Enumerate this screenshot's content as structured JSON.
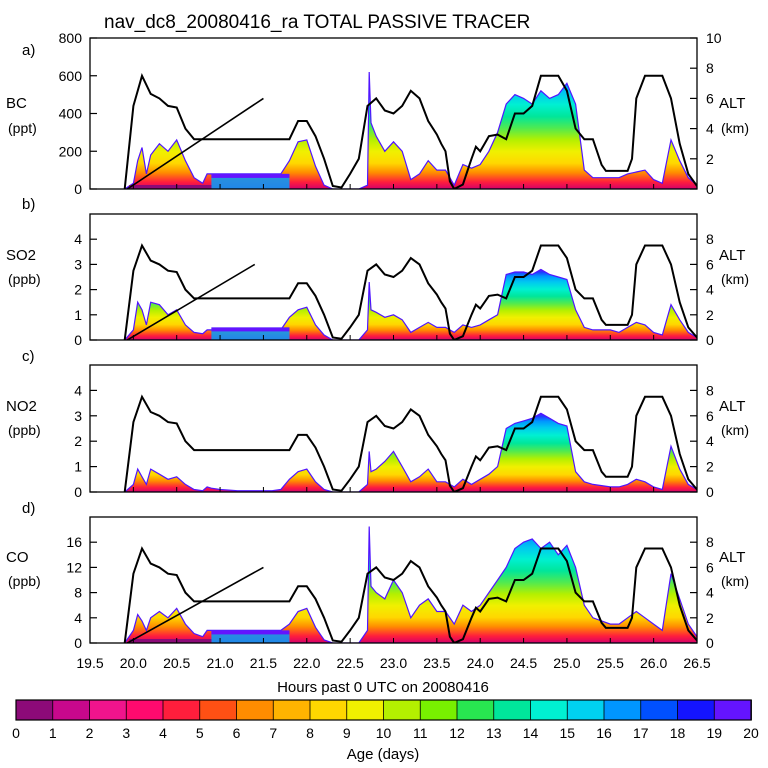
{
  "chart_data": {
    "type": "area",
    "title": "nav_dc8_20080416_ra TOTAL PASSIVE TRACER",
    "xlabel": "Hours past 0 UTC on 20080416",
    "xlim": [
      19.5,
      26.5
    ],
    "x_ticks": [
      "19.5",
      "20.0",
      "20.5",
      "21.0",
      "21.5",
      "22.0",
      "22.5",
      "23.0",
      "23.5",
      "24.0",
      "24.5",
      "25.0",
      "25.5",
      "26.0",
      "26.5"
    ],
    "colorbar": {
      "label": "Age (days)",
      "ticks": [
        "0",
        "1",
        "2",
        "3",
        "4",
        "5",
        "6",
        "7",
        "8",
        "9",
        "10",
        "11",
        "12",
        "13",
        "14",
        "15",
        "16",
        "17",
        "18",
        "19",
        "20"
      ],
      "colors": [
        "#8c0a78",
        "#c8088c",
        "#f0148c",
        "#ff0a6e",
        "#ff1e3c",
        "#ff5014",
        "#ff8c00",
        "#ffb400",
        "#ffd700",
        "#f0f000",
        "#b4f000",
        "#78f000",
        "#28e650",
        "#00e69b",
        "#00f0d2",
        "#00d2f0",
        "#0096ff",
        "#0050ff",
        "#1414ff",
        "#6414ff"
      ]
    },
    "altitude": {
      "label": "ALT",
      "unit": "(km)",
      "ylim": [
        0,
        10
      ],
      "x": [
        19.9,
        20.0,
        20.1,
        20.2,
        20.3,
        20.4,
        20.5,
        20.6,
        20.7,
        20.8,
        20.9,
        21.0,
        21.2,
        21.4,
        21.6,
        21.8,
        21.9,
        22.0,
        22.1,
        22.2,
        22.3,
        22.4,
        22.5,
        22.6,
        22.7,
        22.8,
        22.9,
        23.0,
        23.1,
        23.2,
        23.3,
        23.4,
        23.5,
        23.55,
        23.6,
        23.65,
        23.7,
        23.8,
        23.9,
        23.95,
        24.0,
        24.05,
        24.1,
        24.2,
        24.3,
        24.4,
        24.5,
        24.6,
        24.7,
        24.8,
        24.9,
        25.0,
        25.1,
        25.2,
        25.3,
        25.4,
        25.45,
        25.5,
        25.6,
        25.7,
        25.75,
        25.8,
        25.9,
        26.0,
        26.1,
        26.2,
        26.3,
        26.4,
        26.5
      ],
      "y": [
        0,
        5.5,
        7.5,
        6.3,
        6.0,
        5.5,
        5.4,
        4.0,
        3.3,
        3.3,
        3.3,
        3.3,
        3.3,
        3.3,
        3.3,
        3.3,
        4.5,
        4.5,
        3.5,
        2.0,
        0.2,
        0.1,
        1.0,
        2.0,
        5.5,
        6.0,
        5.2,
        5.0,
        5.5,
        6.5,
        6.0,
        4.5,
        3.6,
        3.0,
        2.5,
        0.5,
        0,
        0.3,
        2.0,
        2.8,
        2.5,
        3.0,
        3.5,
        3.6,
        3.3,
        5.0,
        5.0,
        5.5,
        7.5,
        7.5,
        7.5,
        6.5,
        4.0,
        3.3,
        3.3,
        1.6,
        1.2,
        1.2,
        1.2,
        1.2,
        2.0,
        6.0,
        7.5,
        7.5,
        7.5,
        6.0,
        3.0,
        1.0,
        0.2
      ]
    },
    "panels": [
      {
        "letter": "a)",
        "species": "BC",
        "unit": "(ppt)",
        "ylim": [
          0,
          800
        ],
        "yticks": [
          "0",
          "200",
          "400",
          "600",
          "800"
        ],
        "alt_ticks": [
          "0",
          "2",
          "4",
          "6",
          "8",
          "10"
        ],
        "alt_max": 10,
        "ramp": [
          21.0,
          21.5
        ],
        "x": [
          19.9,
          20.0,
          20.05,
          20.1,
          20.15,
          20.2,
          20.3,
          20.4,
          20.5,
          20.6,
          20.7,
          20.8,
          20.85,
          20.9,
          21.0,
          21.2,
          21.4,
          21.6,
          21.7,
          21.8,
          21.9,
          22.0,
          22.1,
          22.2,
          22.3,
          22.6,
          22.7,
          22.72,
          22.74,
          22.8,
          22.9,
          23.0,
          23.1,
          23.2,
          23.3,
          23.4,
          23.5,
          23.6,
          23.7,
          23.8,
          23.9,
          24.0,
          24.1,
          24.2,
          24.3,
          24.4,
          24.5,
          24.6,
          24.7,
          24.8,
          24.9,
          25.0,
          25.1,
          25.2,
          25.3,
          25.5,
          25.6,
          25.7,
          25.8,
          25.9,
          26.0,
          26.1,
          26.2,
          26.3,
          26.4,
          26.5
        ],
        "values": [
          0,
          30,
          150,
          220,
          80,
          180,
          240,
          200,
          260,
          150,
          60,
          30,
          80,
          80,
          80,
          80,
          80,
          80,
          80,
          150,
          250,
          260,
          120,
          20,
          0,
          0,
          20,
          620,
          350,
          280,
          200,
          250,
          200,
          50,
          80,
          150,
          100,
          100,
          20,
          130,
          110,
          130,
          200,
          300,
          450,
          500,
          480,
          450,
          520,
          480,
          500,
          560,
          450,
          100,
          60,
          60,
          60,
          80,
          90,
          100,
          50,
          30,
          260,
          150,
          60,
          20
        ]
      },
      {
        "letter": "b)",
        "species": "SO2",
        "unit": "(ppb)",
        "ylim": [
          0,
          5
        ],
        "yticks": [
          "0",
          "1",
          "2",
          "3",
          "4"
        ],
        "alt_ticks": [
          "0",
          "2",
          "4",
          "6",
          "8"
        ],
        "alt_max": 10,
        "ramp": [
          20.8,
          21.4
        ],
        "x": [
          19.9,
          20.0,
          20.05,
          20.1,
          20.15,
          20.2,
          20.3,
          20.4,
          20.5,
          20.6,
          20.7,
          20.8,
          20.85,
          20.9,
          21.0,
          21.2,
          21.4,
          21.6,
          21.7,
          21.8,
          21.9,
          22.0,
          22.1,
          22.2,
          22.3,
          22.6,
          22.7,
          22.72,
          22.74,
          22.8,
          22.9,
          23.0,
          23.1,
          23.2,
          23.3,
          23.4,
          23.5,
          23.6,
          23.7,
          23.8,
          23.9,
          24.0,
          24.1,
          24.2,
          24.3,
          24.4,
          24.5,
          24.6,
          24.7,
          24.8,
          24.9,
          25.0,
          25.1,
          25.2,
          25.3,
          25.5,
          25.6,
          25.7,
          25.8,
          25.9,
          26.0,
          26.1,
          26.2,
          26.3,
          26.4,
          26.5
        ],
        "values": [
          0,
          0.4,
          1.5,
          1.2,
          0.6,
          1.5,
          1.4,
          1.0,
          1.2,
          0.6,
          0.3,
          0.25,
          0.4,
          0.4,
          0.4,
          0.4,
          0.4,
          0.4,
          0.4,
          0.9,
          1.2,
          1.3,
          0.6,
          0.2,
          0,
          0,
          0.4,
          2.3,
          1.2,
          1.1,
          0.9,
          1.0,
          0.8,
          0.3,
          0.5,
          0.7,
          0.5,
          0.5,
          0.3,
          0.6,
          0.5,
          0.6,
          0.8,
          1.0,
          2.6,
          2.7,
          2.7,
          2.6,
          2.8,
          2.6,
          2.5,
          2.4,
          1.2,
          0.5,
          0.4,
          0.4,
          0.3,
          0.5,
          0.7,
          0.6,
          0.3,
          0.2,
          1.4,
          0.8,
          0.3,
          0.1
        ]
      },
      {
        "letter": "c)",
        "species": "NO2",
        "unit": "(ppb)",
        "ylim": [
          0,
          5
        ],
        "yticks": [
          "0",
          "1",
          "2",
          "3",
          "4"
        ],
        "alt_ticks": [
          "0",
          "2",
          "4",
          "6",
          "8"
        ],
        "alt_max": 10,
        "ramp": null,
        "x": [
          19.9,
          20.0,
          20.05,
          20.1,
          20.15,
          20.2,
          20.3,
          20.4,
          20.5,
          20.6,
          20.7,
          20.8,
          20.85,
          20.9,
          21.0,
          21.2,
          21.4,
          21.6,
          21.7,
          21.8,
          21.9,
          22.0,
          22.1,
          22.2,
          22.3,
          22.6,
          22.7,
          22.72,
          22.74,
          22.8,
          22.9,
          23.0,
          23.1,
          23.2,
          23.3,
          23.4,
          23.5,
          23.6,
          23.7,
          23.8,
          23.9,
          24.0,
          24.1,
          24.2,
          24.3,
          24.4,
          24.5,
          24.6,
          24.7,
          24.8,
          24.9,
          25.0,
          25.1,
          25.2,
          25.3,
          25.5,
          25.6,
          25.7,
          25.8,
          25.9,
          26.0,
          26.1,
          26.2,
          26.3,
          26.4,
          26.5
        ],
        "values": [
          0,
          0.3,
          0.9,
          0.6,
          0.3,
          0.9,
          0.7,
          0.5,
          0.6,
          0.3,
          0.1,
          0.05,
          0.2,
          0.15,
          0.1,
          0.05,
          0.05,
          0.05,
          0.1,
          0.5,
          0.8,
          0.9,
          0.4,
          0.1,
          0,
          0,
          0.3,
          1.6,
          0.8,
          0.9,
          1.2,
          1.6,
          1.0,
          0.4,
          0.6,
          0.9,
          0.4,
          0.4,
          0.2,
          0.5,
          0.3,
          0.5,
          0.7,
          1.0,
          2.5,
          2.7,
          2.8,
          2.9,
          3.1,
          2.9,
          2.7,
          2.6,
          0.8,
          0.4,
          0.3,
          0.2,
          0.2,
          0.3,
          0.5,
          0.4,
          0.2,
          0.1,
          1.8,
          0.9,
          0.3,
          0.1
        ]
      },
      {
        "letter": "d)",
        "species": "CO",
        "unit": "(ppb)",
        "ylim": [
          0,
          20
        ],
        "yticks": [
          "0",
          "4",
          "8",
          "12",
          "16"
        ],
        "alt_ticks": [
          "0",
          "2",
          "4",
          "6",
          "8"
        ],
        "alt_max": 10,
        "ramp": [
          21.0,
          21.5
        ],
        "x": [
          19.9,
          20.0,
          20.05,
          20.1,
          20.15,
          20.2,
          20.3,
          20.4,
          20.5,
          20.6,
          20.7,
          20.8,
          20.85,
          20.9,
          21.0,
          21.2,
          21.4,
          21.6,
          21.7,
          21.8,
          21.9,
          22.0,
          22.1,
          22.2,
          22.3,
          22.6,
          22.7,
          22.72,
          22.74,
          22.8,
          22.9,
          23.0,
          23.1,
          23.2,
          23.3,
          23.4,
          23.5,
          23.6,
          23.7,
          23.8,
          23.9,
          24.0,
          24.1,
          24.2,
          24.3,
          24.4,
          24.5,
          24.6,
          24.7,
          24.8,
          24.9,
          25.0,
          25.1,
          25.2,
          25.3,
          25.5,
          25.6,
          25.7,
          25.8,
          25.9,
          26.0,
          26.1,
          26.2,
          26.3,
          26.4,
          26.5
        ],
        "values": [
          0,
          2.0,
          4.5,
          3.5,
          2.0,
          4.0,
          5.0,
          4.0,
          5.5,
          3.0,
          1.5,
          1.0,
          2.0,
          2.0,
          2.0,
          2.0,
          2.0,
          2.0,
          2.0,
          3.0,
          5.0,
          5.5,
          2.5,
          0.5,
          0,
          0,
          2.0,
          18.5,
          9.0,
          8.0,
          7.0,
          10.0,
          8.0,
          4.0,
          6.0,
          7.0,
          5.0,
          5.0,
          3.0,
          6.0,
          5.0,
          6.0,
          8.0,
          10.0,
          12.0,
          15.0,
          16.0,
          16.5,
          15.0,
          16.0,
          14.0,
          15.5,
          12.0,
          6.0,
          4.0,
          3.0,
          3.0,
          4.0,
          5.0,
          4.0,
          3.0,
          2.0,
          11.0,
          7.0,
          3.0,
          1.0
        ]
      }
    ]
  }
}
